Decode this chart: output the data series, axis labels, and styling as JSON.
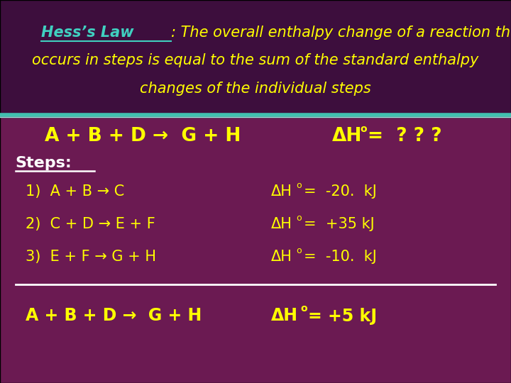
{
  "bg_header": "#3d0e3d",
  "bg_body": "#6b1a52",
  "teal_line": "#40c0b0",
  "yellow": "#ffff00",
  "white": "#ffffff",
  "cyan": "#40d0c0",
  "fig_width": 7.2,
  "fig_height": 5.4,
  "dpi": 100,
  "header_line1_cyan": "Hess’s Law",
  "header_line1_yellow": ": The overall enthalpy change of a reaction that",
  "header_line2": "occurs in steps is equal to the sum of the standard enthalpy",
  "header_line3": "changes of the individual steps"
}
